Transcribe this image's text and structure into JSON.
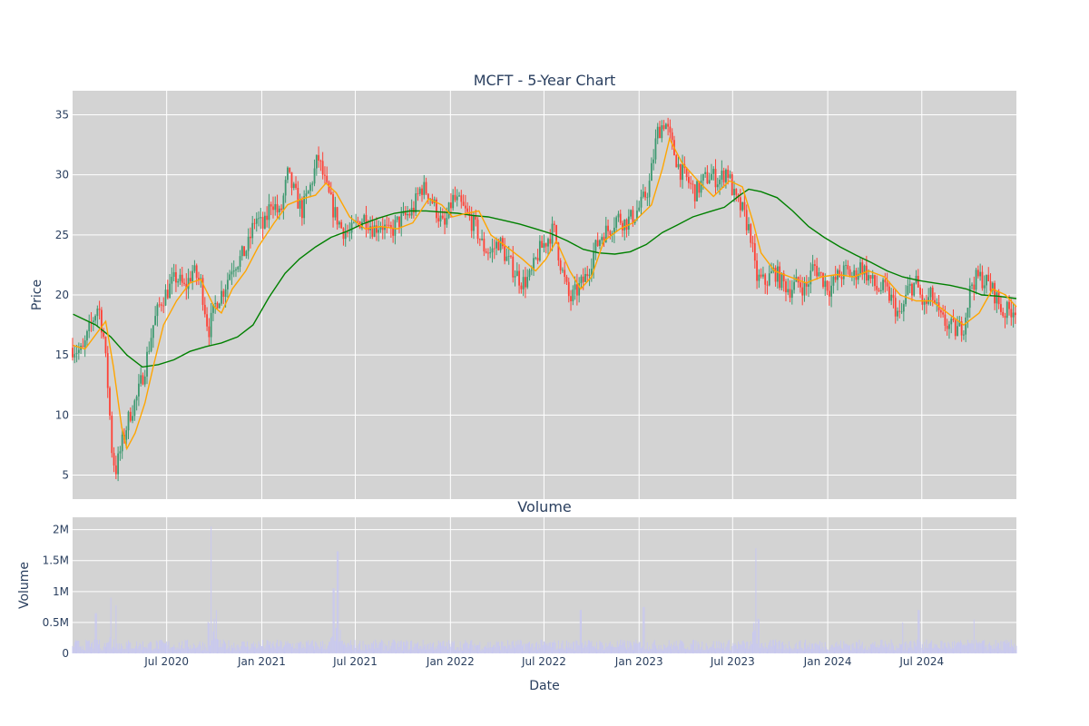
{
  "chart_data": {
    "type": "candlestick",
    "title": "MCFT - 5-Year Chart",
    "price_panel": {
      "ylabel": "Price",
      "ylim": [
        3,
        37
      ],
      "yticks": [
        5,
        10,
        15,
        20,
        25,
        30,
        35
      ],
      "ma_short_color": "#ffa500",
      "ma_long_color": "#008000",
      "up_color": "#3d9970",
      "down_color": "#ff4136",
      "background": "#d3d3d3",
      "grid": true
    },
    "volume_panel": {
      "subtitle": "Volume",
      "ylabel": "Volume",
      "xlabel": "Date",
      "ylim": [
        0,
        2200000
      ],
      "yticks": [
        {
          "value": 0,
          "label": "0"
        },
        {
          "value": 500000,
          "label": "0.5M"
        },
        {
          "value": 1000000,
          "label": "1M"
        },
        {
          "value": 1500000,
          "label": "1.5M"
        },
        {
          "value": 2000000,
          "label": "2M"
        }
      ],
      "bar_color": "#c8c8f0",
      "background": "#d3d3d3",
      "grid": true
    },
    "x_range": [
      "2020-01-01",
      "2024-12-31"
    ],
    "x_ticks": [
      {
        "date": "2020-07-01",
        "label": "Jul 2020"
      },
      {
        "date": "2021-01-01",
        "label": "Jan 2021"
      },
      {
        "date": "2021-07-01",
        "label": "Jul 2021"
      },
      {
        "date": "2022-01-01",
        "label": "Jan 2022"
      },
      {
        "date": "2022-07-01",
        "label": "Jul 2022"
      },
      {
        "date": "2023-01-01",
        "label": "Jan 2023"
      },
      {
        "date": "2023-07-01",
        "label": "Jul 2023"
      },
      {
        "date": "2024-01-01",
        "label": "Jan 2024"
      },
      {
        "date": "2024-07-01",
        "label": "Jul 2024"
      }
    ],
    "price_series": [
      [
        "2020-01-02",
        15.6
      ],
      [
        "2020-01-20",
        15.2
      ],
      [
        "2020-02-05",
        17.5
      ],
      [
        "2020-02-20",
        19.2
      ],
      [
        "2020-03-01",
        16.5
      ],
      [
        "2020-03-10",
        12.0
      ],
      [
        "2020-03-18",
        6.5
      ],
      [
        "2020-03-25",
        5.5
      ],
      [
        "2020-04-05",
        7.5
      ],
      [
        "2020-04-20",
        10.0
      ],
      [
        "2020-05-05",
        11.5
      ],
      [
        "2020-05-20",
        14.0
      ],
      [
        "2020-06-05",
        17.5
      ],
      [
        "2020-06-20",
        19.5
      ],
      [
        "2020-07-05",
        20.5
      ],
      [
        "2020-07-20",
        21.5
      ],
      [
        "2020-08-05",
        20.5
      ],
      [
        "2020-08-20",
        22.0
      ],
      [
        "2020-09-05",
        21.0
      ],
      [
        "2020-09-20",
        17.0
      ],
      [
        "2020-10-05",
        19.5
      ],
      [
        "2020-10-20",
        20.5
      ],
      [
        "2020-11-05",
        22.5
      ],
      [
        "2020-11-20",
        23.0
      ],
      [
        "2020-12-05",
        24.0
      ],
      [
        "2020-12-20",
        26.5
      ],
      [
        "2021-01-05",
        25.5
      ],
      [
        "2021-01-20",
        28.0
      ],
      [
        "2021-02-05",
        26.5
      ],
      [
        "2021-02-20",
        30.0
      ],
      [
        "2021-03-05",
        28.5
      ],
      [
        "2021-03-20",
        27.0
      ],
      [
        "2021-04-05",
        29.0
      ],
      [
        "2021-04-20",
        31.5
      ],
      [
        "2021-05-05",
        29.0
      ],
      [
        "2021-05-20",
        27.0
      ],
      [
        "2021-06-05",
        25.5
      ],
      [
        "2021-06-20",
        25.0
      ],
      [
        "2021-07-05",
        26.0
      ],
      [
        "2021-07-20",
        26.5
      ],
      [
        "2021-08-05",
        25.5
      ],
      [
        "2021-08-20",
        26.0
      ],
      [
        "2021-09-05",
        25.0
      ],
      [
        "2021-09-20",
        26.0
      ],
      [
        "2021-10-05",
        26.5
      ],
      [
        "2021-10-20",
        27.0
      ],
      [
        "2021-11-05",
        29.0
      ],
      [
        "2021-11-20",
        28.5
      ],
      [
        "2021-12-05",
        27.0
      ],
      [
        "2021-12-20",
        25.5
      ],
      [
        "2022-01-05",
        28.0
      ],
      [
        "2022-01-20",
        27.5
      ],
      [
        "2022-02-05",
        26.5
      ],
      [
        "2022-02-20",
        25.5
      ],
      [
        "2022-03-05",
        24.0
      ],
      [
        "2022-03-20",
        23.5
      ],
      [
        "2022-04-05",
        24.5
      ],
      [
        "2022-04-20",
        23.0
      ],
      [
        "2022-05-05",
        22.0
      ],
      [
        "2022-05-20",
        21.0
      ],
      [
        "2022-06-05",
        21.5
      ],
      [
        "2022-06-20",
        23.5
      ],
      [
        "2022-07-05",
        24.5
      ],
      [
        "2022-07-20",
        25.5
      ],
      [
        "2022-08-05",
        22.0
      ],
      [
        "2022-08-20",
        19.5
      ],
      [
        "2022-09-05",
        20.5
      ],
      [
        "2022-09-20",
        21.5
      ],
      [
        "2022-10-05",
        23.5
      ],
      [
        "2022-10-20",
        25.0
      ],
      [
        "2022-11-05",
        25.5
      ],
      [
        "2022-11-20",
        26.5
      ],
      [
        "2022-12-05",
        26.0
      ],
      [
        "2022-12-20",
        26.5
      ],
      [
        "2023-01-05",
        27.5
      ],
      [
        "2023-01-20",
        29.0
      ],
      [
        "2023-02-05",
        33.5
      ],
      [
        "2023-02-20",
        34.5
      ],
      [
        "2023-03-05",
        32.5
      ],
      [
        "2023-03-20",
        30.5
      ],
      [
        "2023-04-05",
        29.5
      ],
      [
        "2023-04-20",
        28.5
      ],
      [
        "2023-05-05",
        29.5
      ],
      [
        "2023-05-20",
        30.0
      ],
      [
        "2023-06-05",
        29.5
      ],
      [
        "2023-06-20",
        30.5
      ],
      [
        "2023-07-05",
        28.0
      ],
      [
        "2023-07-20",
        27.0
      ],
      [
        "2023-08-05",
        25.0
      ],
      [
        "2023-08-15",
        21.5
      ],
      [
        "2023-09-01",
        21.0
      ],
      [
        "2023-09-20",
        22.0
      ],
      [
        "2023-10-05",
        21.0
      ],
      [
        "2023-10-20",
        20.5
      ],
      [
        "2023-11-05",
        21.0
      ],
      [
        "2023-11-20",
        20.5
      ],
      [
        "2023-12-05",
        22.5
      ],
      [
        "2023-12-20",
        21.5
      ],
      [
        "2024-01-05",
        20.5
      ],
      [
        "2024-01-20",
        21.5
      ],
      [
        "2024-02-05",
        22.0
      ],
      [
        "2024-02-20",
        21.5
      ],
      [
        "2024-03-05",
        22.5
      ],
      [
        "2024-03-20",
        21.5
      ],
      [
        "2024-04-05",
        20.5
      ],
      [
        "2024-04-20",
        20.5
      ],
      [
        "2024-05-05",
        19.5
      ],
      [
        "2024-05-20",
        18.0
      ],
      [
        "2024-06-05",
        20.5
      ],
      [
        "2024-06-20",
        21.0
      ],
      [
        "2024-07-05",
        19.0
      ],
      [
        "2024-07-20",
        20.0
      ],
      [
        "2024-08-05",
        18.0
      ],
      [
        "2024-08-20",
        17.5
      ],
      [
        "2024-09-05",
        17.0
      ],
      [
        "2024-09-20",
        17.5
      ],
      [
        "2024-10-05",
        21.0
      ],
      [
        "2024-10-20",
        21.5
      ],
      [
        "2024-11-05",
        21.0
      ],
      [
        "2024-11-20",
        20.0
      ],
      [
        "2024-12-05",
        18.5
      ],
      [
        "2024-12-31",
        19.0
      ]
    ],
    "ma_short": [
      [
        "2020-01-02",
        15.8
      ],
      [
        "2020-01-25",
        15.5
      ],
      [
        "2020-02-20",
        17.0
      ],
      [
        "2020-03-05",
        17.8
      ],
      [
        "2020-03-20",
        14.0
      ],
      [
        "2020-04-05",
        9.0
      ],
      [
        "2020-04-15",
        7.2
      ],
      [
        "2020-05-01",
        8.5
      ],
      [
        "2020-05-20",
        11.0
      ],
      [
        "2020-06-05",
        14.0
      ],
      [
        "2020-06-25",
        17.5
      ],
      [
        "2020-07-20",
        19.5
      ],
      [
        "2020-08-15",
        21.0
      ],
      [
        "2020-09-05",
        21.3
      ],
      [
        "2020-10-01",
        19.0
      ],
      [
        "2020-10-15",
        18.5
      ],
      [
        "2020-11-05",
        20.5
      ],
      [
        "2020-12-01",
        22.0
      ],
      [
        "2020-12-25",
        24.0
      ],
      [
        "2021-01-25",
        26.0
      ],
      [
        "2021-02-20",
        27.5
      ],
      [
        "2021-03-20",
        28.0
      ],
      [
        "2021-04-15",
        28.3
      ],
      [
        "2021-05-05",
        29.3
      ],
      [
        "2021-05-25",
        28.5
      ],
      [
        "2021-06-20",
        26.5
      ],
      [
        "2021-07-20",
        25.5
      ],
      [
        "2021-08-20",
        25.7
      ],
      [
        "2021-09-20",
        25.5
      ],
      [
        "2021-10-20",
        26.0
      ],
      [
        "2021-11-20",
        28.0
      ],
      [
        "2021-12-15",
        27.5
      ],
      [
        "2022-01-05",
        26.5
      ],
      [
        "2022-02-01",
        26.8
      ],
      [
        "2022-02-25",
        27.0
      ],
      [
        "2022-03-20",
        25.0
      ],
      [
        "2022-04-20",
        24.0
      ],
      [
        "2022-05-20",
        23.0
      ],
      [
        "2022-06-15",
        22.0
      ],
      [
        "2022-07-05",
        23.0
      ],
      [
        "2022-07-25",
        24.5
      ],
      [
        "2022-08-20",
        22.0
      ],
      [
        "2022-09-10",
        20.5
      ],
      [
        "2022-10-01",
        21.5
      ],
      [
        "2022-10-25",
        24.5
      ],
      [
        "2022-11-25",
        25.5
      ],
      [
        "2022-12-20",
        26.0
      ],
      [
        "2023-01-25",
        27.5
      ],
      [
        "2023-02-15",
        30.5
      ],
      [
        "2023-03-01",
        33.0
      ],
      [
        "2023-03-25",
        31.0
      ],
      [
        "2023-04-25",
        29.5
      ],
      [
        "2023-05-25",
        28.2
      ],
      [
        "2023-06-25",
        29.5
      ],
      [
        "2023-07-20",
        29.0
      ],
      [
        "2023-08-10",
        26.0
      ],
      [
        "2023-08-25",
        23.5
      ],
      [
        "2023-09-20",
        22.0
      ],
      [
        "2023-10-20",
        21.5
      ],
      [
        "2023-11-20",
        21.0
      ],
      [
        "2023-12-20",
        21.5
      ],
      [
        "2024-01-20",
        21.7
      ],
      [
        "2024-02-20",
        21.5
      ],
      [
        "2024-03-20",
        22.0
      ],
      [
        "2024-04-20",
        21.5
      ],
      [
        "2024-05-20",
        20.0
      ],
      [
        "2024-06-20",
        19.5
      ],
      [
        "2024-07-20",
        19.5
      ],
      [
        "2024-08-20",
        18.5
      ],
      [
        "2024-09-20",
        17.5
      ],
      [
        "2024-10-20",
        18.5
      ],
      [
        "2024-11-15",
        20.5
      ],
      [
        "2024-12-10",
        20.0
      ],
      [
        "2024-12-31",
        19.0
      ]
    ],
    "ma_long": [
      [
        "2020-01-02",
        18.4
      ],
      [
        "2020-02-15",
        17.5
      ],
      [
        "2020-03-15",
        16.5
      ],
      [
        "2020-04-15",
        15.0
      ],
      [
        "2020-05-15",
        14.0
      ],
      [
        "2020-06-15",
        14.2
      ],
      [
        "2020-07-15",
        14.6
      ],
      [
        "2020-08-15",
        15.3
      ],
      [
        "2020-09-15",
        15.7
      ],
      [
        "2020-10-15",
        16.0
      ],
      [
        "2020-11-15",
        16.5
      ],
      [
        "2020-12-15",
        17.5
      ],
      [
        "2021-01-15",
        19.8
      ],
      [
        "2021-02-15",
        21.8
      ],
      [
        "2021-03-15",
        23.0
      ],
      [
        "2021-04-15",
        24.0
      ],
      [
        "2021-05-15",
        24.8
      ],
      [
        "2021-06-15",
        25.3
      ],
      [
        "2021-07-15",
        25.9
      ],
      [
        "2021-08-15",
        26.4
      ],
      [
        "2021-09-15",
        26.8
      ],
      [
        "2021-10-15",
        27.0
      ],
      [
        "2021-11-15",
        27.0
      ],
      [
        "2021-12-15",
        26.9
      ],
      [
        "2022-01-15",
        26.8
      ],
      [
        "2022-02-15",
        26.6
      ],
      [
        "2022-03-15",
        26.5
      ],
      [
        "2022-04-15",
        26.2
      ],
      [
        "2022-05-15",
        25.9
      ],
      [
        "2022-06-15",
        25.5
      ],
      [
        "2022-07-15",
        25.1
      ],
      [
        "2022-08-15",
        24.5
      ],
      [
        "2022-09-15",
        23.8
      ],
      [
        "2022-10-15",
        23.5
      ],
      [
        "2022-11-15",
        23.4
      ],
      [
        "2022-12-15",
        23.6
      ],
      [
        "2023-01-15",
        24.2
      ],
      [
        "2023-02-15",
        25.2
      ],
      [
        "2023-03-15",
        25.8
      ],
      [
        "2023-04-15",
        26.5
      ],
      [
        "2023-05-15",
        26.9
      ],
      [
        "2023-06-15",
        27.3
      ],
      [
        "2023-07-15",
        28.3
      ],
      [
        "2023-08-01",
        28.8
      ],
      [
        "2023-08-25",
        28.6
      ],
      [
        "2023-09-25",
        28.1
      ],
      [
        "2023-10-25",
        27.0
      ],
      [
        "2023-11-25",
        25.7
      ],
      [
        "2023-12-25",
        24.8
      ],
      [
        "2024-01-25",
        24.0
      ],
      [
        "2024-02-25",
        23.3
      ],
      [
        "2024-03-25",
        22.7
      ],
      [
        "2024-04-25",
        22.0
      ],
      [
        "2024-05-25",
        21.5
      ],
      [
        "2024-06-25",
        21.2
      ],
      [
        "2024-07-25",
        21.0
      ],
      [
        "2024-08-25",
        20.8
      ],
      [
        "2024-09-25",
        20.5
      ],
      [
        "2024-10-25",
        20.0
      ],
      [
        "2024-11-25",
        19.9
      ],
      [
        "2024-12-31",
        19.7
      ]
    ],
    "volume_baseline": 150000,
    "volume_spikes": [
      [
        "2020-03-15",
        900000
      ],
      [
        "2020-03-25",
        780000
      ],
      [
        "2020-02-15",
        650000
      ],
      [
        "2020-09-25",
        2050000
      ],
      [
        "2020-10-05",
        700000
      ],
      [
        "2021-05-28",
        1650000
      ],
      [
        "2021-05-20",
        1050000
      ],
      [
        "2022-09-10",
        700000
      ],
      [
        "2023-01-10",
        750000
      ],
      [
        "2023-08-15",
        1700000
      ],
      [
        "2023-08-20",
        550000
      ],
      [
        "2024-05-25",
        500000
      ],
      [
        "2024-06-25",
        700000
      ],
      [
        "2024-10-10",
        550000
      ]
    ]
  }
}
